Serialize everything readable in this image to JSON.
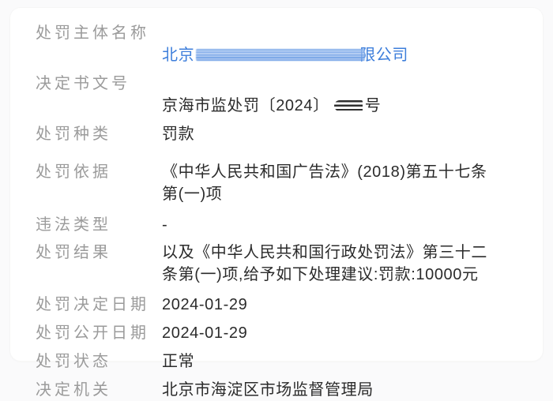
{
  "colors": {
    "entity_link_blue": "#3d7edb",
    "label_gray": "#9b9b9b",
    "value_dark": "#2b2b2b"
  },
  "rows": [
    {
      "label": "处罚主体名称",
      "value_prefix": "北京",
      "value_suffix": "限公司",
      "redaction": "blue-stripes"
    },
    {
      "label": "决定书文号",
      "value_prefix": "京海市监处罚〔2024〕",
      "value_suffix": "号",
      "redaction": "dark-stripes"
    },
    {
      "label": "处罚种类",
      "value": "罚款"
    },
    {
      "label": "处罚依据",
      "value": "《中华人民共和国广告法》(2018)第五十七条\n第(一)项"
    },
    {
      "label": "违法类型",
      "value": "-"
    },
    {
      "label": "处罚结果",
      "value": "以及《中华人民共和国行政处罚法》第三十二\n条第(一)项,给予如下处理建议:罚款:10000元"
    },
    {
      "label": "处罚决定日期",
      "value": "2024-01-29"
    },
    {
      "label": "处罚公开日期",
      "value": "2024-01-29"
    },
    {
      "label": "处罚状态",
      "value": "正常"
    },
    {
      "label": "决定机关",
      "value": "北京市海淀区市场监督管理局"
    }
  ]
}
